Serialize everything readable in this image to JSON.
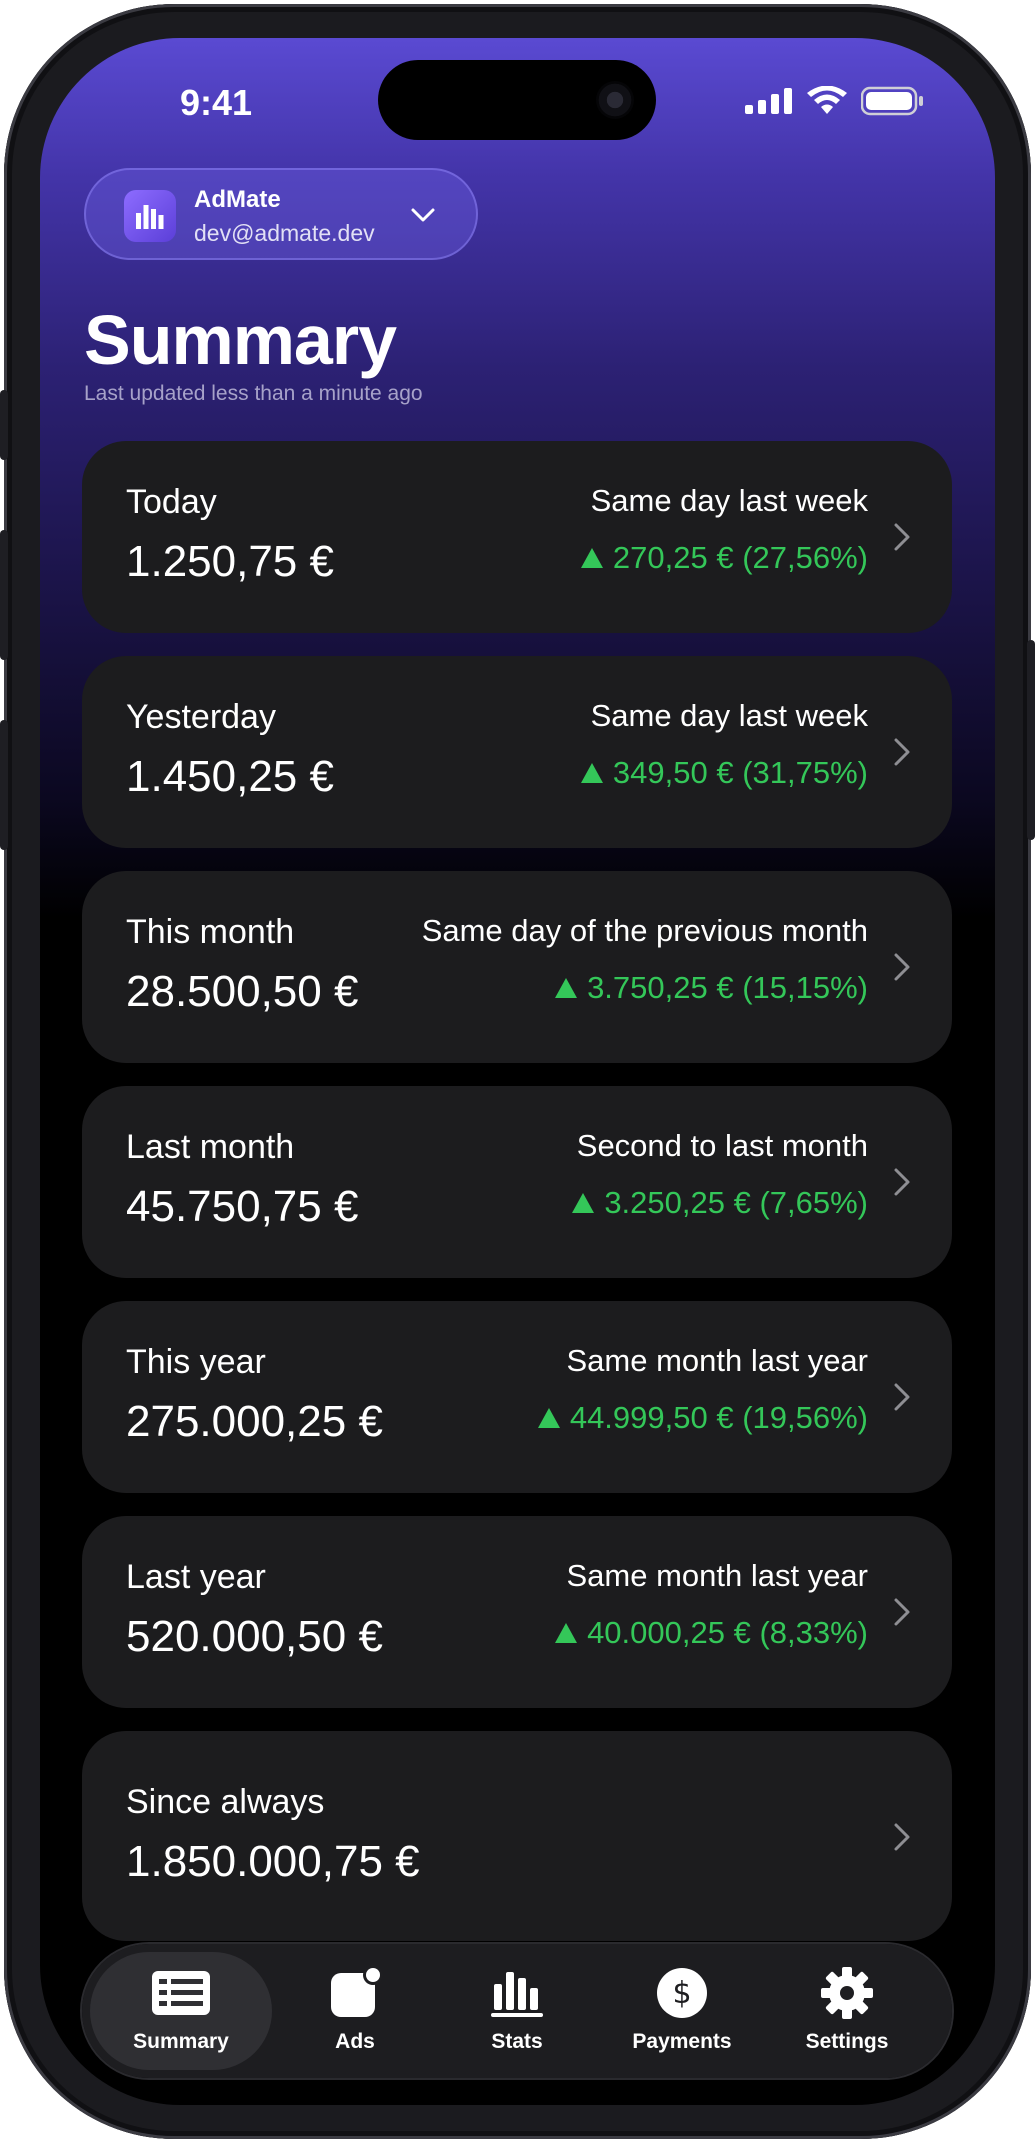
{
  "status_bar": {
    "time": "9:41"
  },
  "account": {
    "name": "AdMate",
    "email": "dev@admate.dev"
  },
  "header": {
    "title": "Summary",
    "subtitle": "Last updated less than a minute ago"
  },
  "cards": [
    {
      "label": "Today",
      "value": "1.250,75 €",
      "compare_label": "Same day last week",
      "change": "270,25 € (27,56%)"
    },
    {
      "label": "Yesterday",
      "value": "1.450,25 €",
      "compare_label": "Same day last week",
      "change": "349,50 € (31,75%)"
    },
    {
      "label": "This month",
      "value": "28.500,50 €",
      "compare_label": "Same day of the previous month",
      "change": "3.750,25 € (15,15%)"
    },
    {
      "label": "Last month",
      "value": "45.750,75 €",
      "compare_label": "Second to last month",
      "change": "3.250,25 € (7,65%)"
    },
    {
      "label": "This year",
      "value": "275.000,25 €",
      "compare_label": "Same month last year",
      "change": "44.999,50 € (19,56%)"
    },
    {
      "label": "Last year",
      "value": "520.000,50 €",
      "compare_label": "Same month last year",
      "change": "40.000,25 € (8,33%)"
    },
    {
      "label": "Since always",
      "value": "1.850.000,75 €"
    }
  ],
  "tabs": [
    {
      "label": "Summary",
      "icon": "summary-icon",
      "active": true
    },
    {
      "label": "Ads",
      "icon": "ads-icon"
    },
    {
      "label": "Stats",
      "icon": "stats-icon"
    },
    {
      "label": "Payments",
      "icon": "payments-icon"
    },
    {
      "label": "Settings",
      "icon": "settings-icon"
    }
  ],
  "colors": {
    "positive": "#34c759",
    "card_bg": "#1c1c1e",
    "accent": "#5a4ad2"
  }
}
